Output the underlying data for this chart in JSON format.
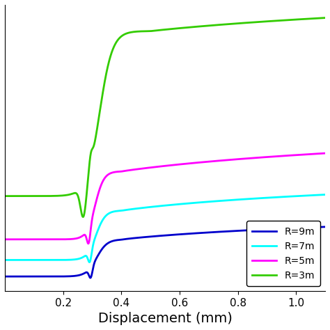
{
  "xlabel": "Displacement (mm)",
  "xlim": [
    0,
    1.1
  ],
  "x_ticks": [
    0.2,
    0.4,
    0.6,
    0.8,
    1.0
  ],
  "legend_labels": [
    "R=9m",
    "R=7m",
    "R=5m",
    "R=3m"
  ],
  "colors": [
    "#0000CC",
    "#00FFFF",
    "#FF00FF",
    "#33CC00"
  ],
  "background_color": "#ffffff",
  "linewidth": 2.0
}
